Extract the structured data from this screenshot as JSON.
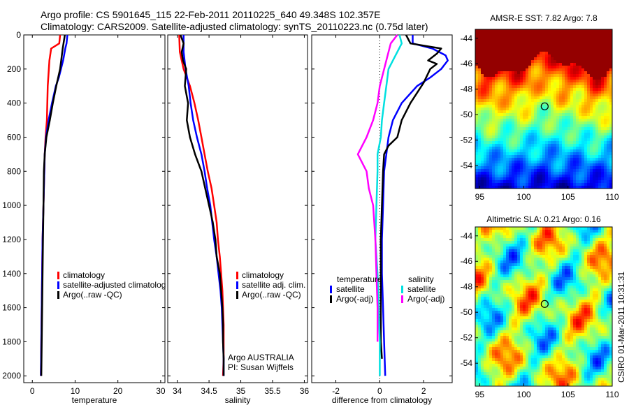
{
  "header": {
    "title_line1": "Argo profile: CS 5901645_115 22-Feb-2011 20110225_640 49.348S 102.357E",
    "title_line2": "Climatology: CARS2009. Satellite-adjusted climatology: synTS_20110223.nc (0.75d later)"
  },
  "chart_data": [
    {
      "type": "line",
      "xlabel": "temperature",
      "ylabel": "",
      "xlim": [
        -2,
        31
      ],
      "ylim": [
        2040,
        0
      ],
      "xticks": [
        0,
        10,
        20,
        30
      ],
      "yticks": [
        0,
        200,
        400,
        600,
        800,
        1000,
        1200,
        1400,
        1600,
        1800,
        2000
      ],
      "legend": [
        "climatology",
        "satellite-adjusted climatolog",
        "Argo(..raw -QC)"
      ],
      "legend_position": "lower-right",
      "series": [
        {
          "name": "climatology",
          "color": "#ff0000",
          "points": [
            [
              6.5,
              0
            ],
            [
              6.3,
              50
            ],
            [
              4.4,
              80
            ],
            [
              4.0,
              150
            ],
            [
              3.6,
              300
            ],
            [
              3.4,
              500
            ],
            [
              3.1,
              600
            ],
            [
              2.9,
              700
            ],
            [
              2.8,
              800
            ],
            [
              2.6,
              1000
            ],
            [
              2.4,
              1200
            ],
            [
              2.3,
              1400
            ],
            [
              2.2,
              1600
            ],
            [
              2.1,
              1800
            ],
            [
              2.0,
              2000
            ]
          ]
        },
        {
          "name": "satellite-adjusted climatolog",
          "color": "#0000ff",
          "points": [
            [
              8.2,
              0
            ],
            [
              8.0,
              50
            ],
            [
              7.7,
              80
            ],
            [
              7.2,
              150
            ],
            [
              6.2,
              250
            ],
            [
              5.5,
              300
            ],
            [
              4.6,
              400
            ],
            [
              3.8,
              500
            ],
            [
              3.2,
              600
            ],
            [
              2.9,
              700
            ],
            [
              2.8,
              800
            ],
            [
              2.6,
              1000
            ],
            [
              2.4,
              1200
            ],
            [
              2.3,
              1400
            ],
            [
              2.2,
              1600
            ],
            [
              2.1,
              1800
            ],
            [
              2.0,
              2000
            ]
          ]
        },
        {
          "name": "Argo(..raw -QC)",
          "color": "#000000",
          "points": [
            [
              7.6,
              0
            ],
            [
              7.3,
              50
            ],
            [
              7.1,
              80
            ],
            [
              6.9,
              120
            ],
            [
              6.5,
              200
            ],
            [
              5.6,
              300
            ],
            [
              4.8,
              400
            ],
            [
              4.1,
              500
            ],
            [
              3.3,
              600
            ],
            [
              2.9,
              700
            ],
            [
              2.7,
              800
            ],
            [
              2.6,
              1000
            ],
            [
              2.5,
              1200
            ],
            [
              2.4,
              1400
            ],
            [
              2.3,
              1600
            ],
            [
              2.2,
              1800
            ],
            [
              2.1,
              2000
            ]
          ]
        }
      ]
    },
    {
      "type": "line",
      "xlabel": "salinity",
      "ylabel": "",
      "xlim": [
        33.85,
        36.05
      ],
      "ylim": [
        2040,
        0
      ],
      "xticks": [
        34,
        34.5,
        35,
        35.5,
        36
      ],
      "legend": [
        "climatology",
        "satellite adj. clim.",
        "Argo(..raw -QC)"
      ],
      "legend_position": "lower-right",
      "annotations": [
        "Argo AUSTRALIA",
        "PI: Susan Wijffels"
      ],
      "series": [
        {
          "name": "climatology",
          "color": "#ff0000",
          "points": [
            [
              34.03,
              0
            ],
            [
              34.04,
              100
            ],
            [
              34.1,
              200
            ],
            [
              34.2,
              300
            ],
            [
              34.27,
              400
            ],
            [
              34.33,
              500
            ],
            [
              34.38,
              600
            ],
            [
              34.43,
              700
            ],
            [
              34.48,
              800
            ],
            [
              34.54,
              900
            ],
            [
              34.58,
              1000
            ],
            [
              34.62,
              1100
            ],
            [
              34.64,
              1200
            ],
            [
              34.67,
              1300
            ],
            [
              34.69,
              1400
            ],
            [
              34.71,
              1500
            ],
            [
              34.72,
              1600
            ],
            [
              34.73,
              1700
            ],
            [
              34.73,
              1800
            ],
            [
              34.73,
              1900
            ],
            [
              34.72,
              2000
            ]
          ]
        },
        {
          "name": "satellite adj. clim.",
          "color": "#0000ff",
          "points": [
            [
              34.1,
              0
            ],
            [
              34.1,
              100
            ],
            [
              34.13,
              200
            ],
            [
              34.18,
              300
            ],
            [
              34.21,
              400
            ],
            [
              34.25,
              500
            ],
            [
              34.31,
              600
            ],
            [
              34.38,
              700
            ],
            [
              34.43,
              800
            ],
            [
              34.47,
              900
            ],
            [
              34.52,
              1000
            ],
            [
              34.58,
              1200
            ],
            [
              34.62,
              1300
            ],
            [
              34.65,
              1400
            ],
            [
              34.68,
              1500
            ],
            [
              34.7,
              1600
            ],
            [
              34.71,
              1700
            ],
            [
              34.72,
              1800
            ],
            [
              34.73,
              1900
            ],
            [
              34.73,
              2000
            ]
          ]
        },
        {
          "name": "Argo(..raw -QC)",
          "color": "#000000",
          "points": [
            [
              34.05,
              0
            ],
            [
              34.1,
              50
            ],
            [
              34.07,
              100
            ],
            [
              34.09,
              150
            ],
            [
              34.14,
              200
            ],
            [
              34.12,
              300
            ],
            [
              34.17,
              400
            ],
            [
              34.15,
              500
            ],
            [
              34.2,
              600
            ],
            [
              34.28,
              700
            ],
            [
              34.38,
              800
            ],
            [
              34.44,
              900
            ],
            [
              34.5,
              1000
            ],
            [
              34.56,
              1100
            ],
            [
              34.6,
              1200
            ],
            [
              34.62,
              1300
            ],
            [
              34.67,
              1400
            ],
            [
              34.69,
              1500
            ],
            [
              34.71,
              1600
            ],
            [
              34.72,
              1700
            ],
            [
              34.72,
              1800
            ],
            [
              34.73,
              1900
            ],
            [
              34.73,
              2000
            ]
          ]
        }
      ]
    },
    {
      "type": "line",
      "xlabel": "difference from climatology",
      "ylabel": "",
      "xlim": [
        -3.1,
        3.3
      ],
      "ylim": [
        2040,
        0
      ],
      "xticks": [
        -2,
        0,
        2
      ],
      "zero_line": "dotted",
      "legend": [
        "temperature",
        "satellite",
        "Argo(-adj)",
        "salinity",
        "satellite",
        "Argo(-adj)"
      ],
      "legend_position": "lower-center",
      "series": [
        {
          "name": "temperature satellite",
          "color": "#0000ff",
          "points": [
            [
              1.5,
              0
            ],
            [
              1.5,
              50
            ],
            [
              2.4,
              80
            ],
            [
              3.0,
              120
            ],
            [
              3.1,
              150
            ],
            [
              2.8,
              200
            ],
            [
              2.3,
              250
            ],
            [
              1.7,
              300
            ],
            [
              1.0,
              400
            ],
            [
              0.6,
              500
            ],
            [
              0.4,
              600
            ],
            [
              0.3,
              700
            ],
            [
              0.2,
              800
            ],
            [
              0.15,
              1000
            ],
            [
              0.1,
              1200
            ],
            [
              0.1,
              1400
            ],
            [
              0.15,
              1600
            ],
            [
              0.2,
              1800
            ],
            [
              0.25,
              2000
            ]
          ]
        },
        {
          "name": "temperature Argo(-adj)",
          "color": "#000000",
          "points": [
            [
              1.2,
              0
            ],
            [
              1.4,
              50
            ],
            [
              2.8,
              80
            ],
            [
              2.6,
              110
            ],
            [
              2.2,
              150
            ],
            [
              2.6,
              170
            ],
            [
              2.3,
              200
            ],
            [
              2.0,
              280
            ],
            [
              1.4,
              400
            ],
            [
              1.0,
              500
            ],
            [
              0.8,
              600
            ],
            [
              0.4,
              650
            ],
            [
              0.2,
              700
            ],
            [
              0.15,
              800
            ],
            [
              0.1,
              1000
            ],
            [
              0.05,
              1200
            ],
            [
              0.05,
              1400
            ],
            [
              0.05,
              1600
            ],
            [
              0.05,
              1800
            ],
            [
              0.1,
              1900
            ]
          ]
        },
        {
          "name": "salinity satellite",
          "color": "#00e0e0",
          "points": [
            [
              0.9,
              0
            ],
            [
              1.0,
              50
            ],
            [
              0.6,
              150
            ],
            [
              0.4,
              200
            ],
            [
              0.3,
              300
            ],
            [
              0.2,
              400
            ],
            [
              0.1,
              500
            ],
            [
              0.05,
              600
            ],
            [
              -0.1,
              700
            ],
            [
              -0.1,
              800
            ],
            [
              -0.15,
              1000
            ],
            [
              -0.2,
              1200
            ],
            [
              -0.1,
              1400
            ],
            [
              -0.05,
              1600
            ],
            [
              0.0,
              1800
            ],
            [
              0.0,
              2000
            ]
          ]
        },
        {
          "name": "salinity Argo(-adj)",
          "color": "#ff00ff",
          "points": [
            [
              0.8,
              0
            ],
            [
              0.5,
              50
            ],
            [
              0.4,
              100
            ],
            [
              0.0,
              300
            ],
            [
              -0.1,
              400
            ],
            [
              -0.3,
              500
            ],
            [
              -0.6,
              600
            ],
            [
              -1.0,
              700
            ],
            [
              -0.6,
              800
            ],
            [
              -0.5,
              900
            ],
            [
              -0.3,
              1000
            ],
            [
              -0.2,
              1200
            ],
            [
              -0.15,
              1400
            ],
            [
              -0.1,
              1600
            ],
            [
              -0.1,
              1800
            ]
          ]
        }
      ]
    },
    {
      "type": "heatmap",
      "title": "AMSR-E SST: 7.82 Argo: 7.8",
      "xlim": [
        94.5,
        110
      ],
      "ylim": [
        -55.8,
        -43.3
      ],
      "xticks": [
        95,
        100,
        105,
        110
      ],
      "yticks": [
        -44,
        -46,
        -48,
        -50,
        -52,
        -54
      ],
      "marker": {
        "lon": 102.357,
        "lat": -49.348
      },
      "colorscale": "jet"
    },
    {
      "type": "heatmap",
      "title": "Altimetric SLA: 0.21 Argo: 0.16",
      "xlim": [
        94.5,
        110
      ],
      "ylim": [
        -55.8,
        -43.3
      ],
      "xticks": [
        95,
        100,
        105,
        110
      ],
      "yticks": [
        -44,
        -46,
        -48,
        -50,
        -52,
        -54
      ],
      "marker": {
        "lon": 102.357,
        "lat": -49.348
      },
      "colorscale": "jet"
    }
  ],
  "footer": {
    "credit": "CSIRO 01-Mar-2011 10:31:31"
  }
}
